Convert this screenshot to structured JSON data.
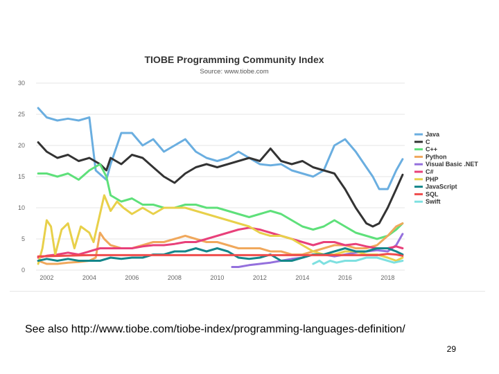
{
  "caption": "See also http://www.tiobe.com/tiobe-index/programming-languages-definition/",
  "page_number": "29",
  "chart_data": {
    "type": "line",
    "title": "TIOBE Programming Community Index",
    "subtitle": "Source: www.tiobe.com",
    "xlabel": "",
    "ylabel": "",
    "xlim": [
      2001.5,
      2018.8
    ],
    "ylim": [
      0,
      30
    ],
    "yticks": [
      "0",
      "5",
      "10",
      "15",
      "20",
      "25",
      "30"
    ],
    "ytick_values": [
      0,
      5,
      10,
      15,
      20,
      25,
      30
    ],
    "xticks": [
      "2002",
      "2004",
      "2006",
      "2008",
      "2010",
      "2012",
      "2014",
      "2016",
      "2018"
    ],
    "xtick_values": [
      2002,
      2004,
      2006,
      2008,
      2010,
      2012,
      2014,
      2016,
      2018
    ],
    "legend_position": "right",
    "series": [
      {
        "name": "Java",
        "color": "#6aaee0",
        "x": [
          2001.6,
          2002,
          2002.5,
          2003,
          2003.5,
          2004,
          2004.3,
          2004.8,
          2005,
          2005.5,
          2006,
          2006.5,
          2007,
          2007.5,
          2008,
          2008.5,
          2009,
          2009.5,
          2010,
          2010.5,
          2011,
          2011.5,
          2012,
          2012.5,
          2013,
          2013.5,
          2014,
          2014.5,
          2015,
          2015.5,
          2016,
          2016.5,
          2017,
          2017.3,
          2017.6,
          2018,
          2018.4,
          2018.7
        ],
        "values": [
          26.0,
          24.5,
          24.0,
          24.3,
          24.0,
          24.5,
          16.0,
          14.5,
          17.0,
          22.0,
          22.0,
          20.0,
          21.0,
          19.0,
          20.0,
          21.0,
          19.0,
          18.0,
          17.5,
          18.0,
          19.0,
          18.0,
          17.0,
          16.8,
          17.0,
          16.0,
          15.5,
          15.0,
          16.0,
          20.0,
          21.0,
          19.0,
          16.5,
          15.0,
          13.0,
          13.0,
          16.0,
          17.8
        ]
      },
      {
        "name": "C",
        "color": "#333333",
        "x": [
          2001.6,
          2002,
          2002.5,
          2003,
          2003.5,
          2004,
          2004.5,
          2004.8,
          2005,
          2005.5,
          2006,
          2006.5,
          2007,
          2007.5,
          2008,
          2008.5,
          2009,
          2009.5,
          2010,
          2010.5,
          2011,
          2011.5,
          2012,
          2012.5,
          2013,
          2013.5,
          2014,
          2014.5,
          2015,
          2015.5,
          2016,
          2016.5,
          2017,
          2017.3,
          2017.6,
          2018,
          2018.4,
          2018.7
        ],
        "values": [
          20.5,
          19.0,
          18.0,
          18.5,
          17.5,
          18.0,
          17.0,
          16.0,
          18.0,
          17.0,
          18.5,
          18.0,
          16.5,
          15.0,
          14.0,
          15.5,
          16.5,
          17.0,
          16.5,
          17.0,
          17.5,
          18.0,
          17.5,
          19.5,
          17.5,
          17.0,
          17.5,
          16.5,
          16.0,
          15.5,
          13.0,
          10.0,
          7.5,
          7.0,
          7.5,
          10.0,
          13.0,
          15.3
        ]
      },
      {
        "name": "C++",
        "color": "#5ee07a",
        "x": [
          2001.6,
          2002,
          2002.5,
          2003,
          2003.5,
          2004,
          2004.5,
          2004.8,
          2005,
          2005.5,
          2006,
          2006.5,
          2007,
          2007.5,
          2008,
          2008.5,
          2009,
          2009.5,
          2010,
          2010.5,
          2011,
          2011.5,
          2012,
          2012.5,
          2013,
          2013.5,
          2014,
          2014.5,
          2015,
          2015.5,
          2016,
          2016.5,
          2017,
          2017.5,
          2018,
          2018.4,
          2018.7
        ],
        "values": [
          15.5,
          15.5,
          15.0,
          15.5,
          14.5,
          16.0,
          17.0,
          15.0,
          12.0,
          11.0,
          11.5,
          10.5,
          10.5,
          10.0,
          10.0,
          10.5,
          10.5,
          10.0,
          10.0,
          9.5,
          9.0,
          8.5,
          9.0,
          9.5,
          9.0,
          8.0,
          7.0,
          6.5,
          7.0,
          8.0,
          7.0,
          6.0,
          5.5,
          5.0,
          5.5,
          6.5,
          7.5
        ]
      },
      {
        "name": "Python",
        "color": "#f0a85c",
        "x": [
          2001.6,
          2002,
          2002.5,
          2003,
          2003.5,
          2004,
          2004.3,
          2004.5,
          2004.7,
          2005,
          2005.5,
          2006,
          2006.5,
          2007,
          2007.5,
          2008,
          2008.5,
          2009,
          2009.5,
          2010,
          2010.5,
          2011,
          2011.5,
          2012,
          2012.5,
          2013,
          2013.5,
          2014,
          2014.5,
          2015,
          2015.5,
          2016,
          2016.5,
          2017,
          2017.5,
          2018,
          2018.4,
          2018.7
        ],
        "values": [
          1.5,
          1.0,
          1.0,
          1.2,
          1.3,
          1.5,
          2.0,
          6.0,
          5.0,
          4.0,
          3.5,
          3.5,
          4.0,
          4.5,
          4.5,
          5.0,
          5.5,
          5.0,
          4.5,
          4.5,
          4.0,
          3.5,
          3.5,
          3.5,
          3.0,
          3.0,
          2.5,
          2.5,
          3.0,
          3.5,
          4.0,
          4.0,
          3.5,
          3.5,
          4.0,
          5.5,
          7.0,
          7.5
        ]
      },
      {
        "name": "Visual Basic .NET",
        "color": "#9470dd",
        "x": [
          2010.7,
          2011,
          2011.5,
          2012,
          2012.5,
          2013,
          2013.5,
          2014,
          2014.5,
          2015,
          2015.5,
          2016,
          2016.5,
          2017,
          2017.5,
          2018,
          2018.4,
          2018.7
        ],
        "values": [
          0.5,
          0.5,
          0.8,
          1.0,
          1.2,
          1.5,
          1.8,
          2.0,
          2.5,
          2.5,
          2.2,
          2.5,
          2.8,
          3.0,
          3.2,
          3.0,
          4.0,
          5.8
        ]
      },
      {
        "name": "C#",
        "color": "#e8407a",
        "x": [
          2001.6,
          2002,
          2002.5,
          2003,
          2003.5,
          2004,
          2004.5,
          2005,
          2005.5,
          2006,
          2006.5,
          2007,
          2007.5,
          2008,
          2008.5,
          2009,
          2009.5,
          2010,
          2010.5,
          2011,
          2011.5,
          2012,
          2012.5,
          2013,
          2013.5,
          2014,
          2014.5,
          2015,
          2015.5,
          2016,
          2016.5,
          2017,
          2017.5,
          2018,
          2018.4,
          2018.7
        ],
        "values": [
          2.0,
          2.3,
          2.5,
          2.8,
          2.5,
          3.0,
          3.5,
          3.5,
          3.5,
          3.5,
          3.8,
          4.0,
          4.0,
          4.2,
          4.5,
          4.5,
          5.0,
          5.5,
          6.0,
          6.5,
          6.8,
          6.5,
          6.0,
          5.5,
          5.0,
          4.5,
          4.0,
          4.5,
          4.5,
          4.0,
          4.2,
          3.8,
          3.5,
          3.5,
          3.8,
          3.5
        ]
      },
      {
        "name": "PHP",
        "color": "#e8d04a",
        "x": [
          2001.6,
          2001.8,
          2002,
          2002.2,
          2002.4,
          2002.7,
          2003,
          2003.3,
          2003.6,
          2004,
          2004.2,
          2004.4,
          2004.7,
          2005,
          2005.3,
          2005.6,
          2006,
          2006.5,
          2007,
          2007.5,
          2008,
          2008.5,
          2009,
          2009.5,
          2010,
          2010.5,
          2011,
          2011.5,
          2012,
          2012.5,
          2013,
          2013.5,
          2014,
          2014.5,
          2015,
          2015.5,
          2016,
          2016.5,
          2017,
          2017.5,
          2018,
          2018.4,
          2018.7
        ],
        "values": [
          1.0,
          3.5,
          8.0,
          7.0,
          2.5,
          6.5,
          7.5,
          3.5,
          7.0,
          6.0,
          4.5,
          7.5,
          12.0,
          9.5,
          11.0,
          10.0,
          9.0,
          10.0,
          9.0,
          10.0,
          10.0,
          10.0,
          9.5,
          9.0,
          8.5,
          8.0,
          7.5,
          7.0,
          6.0,
          5.5,
          5.5,
          5.0,
          4.0,
          3.0,
          2.5,
          2.5,
          3.0,
          3.0,
          2.5,
          2.5,
          2.0,
          1.5,
          2.0
        ]
      },
      {
        "name": "JavaScript",
        "color": "#14868a",
        "x": [
          2001.6,
          2002,
          2002.5,
          2003,
          2003.5,
          2004,
          2004.5,
          2005,
          2005.5,
          2006,
          2006.5,
          2007,
          2007.5,
          2008,
          2008.5,
          2009,
          2009.5,
          2010,
          2010.5,
          2011,
          2011.5,
          2012,
          2012.5,
          2013,
          2013.5,
          2014,
          2014.5,
          2015,
          2015.5,
          2016,
          2016.5,
          2017,
          2017.5,
          2018,
          2018.4,
          2018.7
        ],
        "values": [
          1.5,
          1.8,
          1.5,
          1.8,
          1.5,
          1.5,
          1.5,
          2.0,
          1.8,
          2.0,
          2.0,
          2.5,
          2.5,
          3.0,
          3.0,
          3.5,
          3.0,
          3.5,
          3.0,
          2.0,
          1.8,
          2.0,
          2.5,
          1.5,
          1.5,
          2.0,
          2.5,
          2.5,
          3.0,
          3.5,
          3.0,
          3.0,
          3.5,
          3.5,
          3.0,
          2.5
        ]
      },
      {
        "name": "SQL",
        "color": "#ef4c4c",
        "x": [
          2001.6,
          2004,
          2006,
          2008,
          2010,
          2012,
          2014,
          2016,
          2017,
          2017.5,
          2018,
          2018.4,
          2018.7
        ],
        "values": [
          2.2,
          2.4,
          2.4,
          2.4,
          2.4,
          2.4,
          2.4,
          2.4,
          2.4,
          2.4,
          2.6,
          2.5,
          2.3
        ]
      },
      {
        "name": "Swift",
        "color": "#7ee0e0",
        "x": [
          2014.5,
          2014.8,
          2015,
          2015.3,
          2015.6,
          2016,
          2016.5,
          2017,
          2017.5,
          2018,
          2018.3,
          2018.7
        ],
        "values": [
          1.0,
          1.5,
          1.0,
          1.5,
          1.2,
          1.5,
          1.5,
          2.0,
          2.0,
          1.5,
          1.2,
          1.5
        ]
      }
    ]
  }
}
